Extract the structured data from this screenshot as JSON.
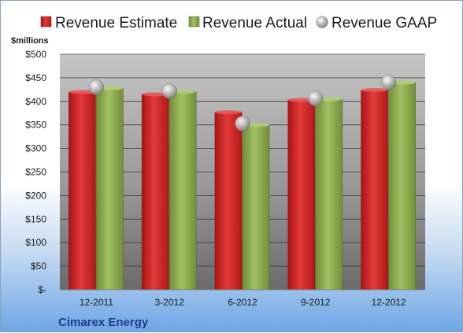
{
  "legend": {
    "estimate": "Revenue Estimate",
    "actual": "Revenue Actual",
    "gaap": "Revenue GAAP"
  },
  "unit_label": "$millions",
  "company": "Cimarex Energy",
  "colors": {
    "estimate": "#d42a2a",
    "actual": "#8fb04f",
    "gaap": "#9a9a9a",
    "plot_bg_top": "#bdbdbd",
    "plot_bg_bottom": "#6f6f6f"
  },
  "chart_data": {
    "type": "bar",
    "categories": [
      "12-2011",
      "3-2012",
      "6-2012",
      "9-2012",
      "12-2012"
    ],
    "series": [
      {
        "name": "Revenue Estimate",
        "values": [
          420,
          415,
          377,
          403,
          424
        ]
      },
      {
        "name": "Revenue Actual",
        "values": [
          428,
          421,
          350,
          405,
          440
        ]
      },
      {
        "name": "Revenue GAAP",
        "values": [
          430,
          422,
          353,
          406,
          441
        ],
        "marker": "circle"
      }
    ],
    "ylim": [
      0,
      500
    ],
    "yticks": [
      0,
      50,
      100,
      150,
      200,
      250,
      300,
      350,
      400,
      450,
      500
    ],
    "ytick_labels": [
      "$-",
      "$50",
      "$100",
      "$150",
      "$200",
      "$250",
      "$300",
      "$350",
      "$400",
      "$450",
      "$500"
    ],
    "grid": true,
    "legend_position": "top"
  }
}
